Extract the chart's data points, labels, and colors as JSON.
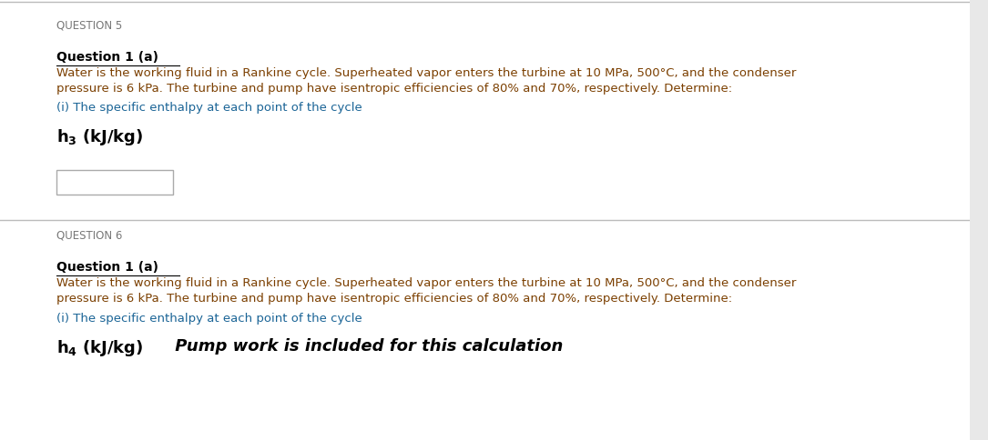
{
  "bg_color": "#e8e8e8",
  "panel_color": "#ffffff",
  "q5_label": "QUESTION 5",
  "q6_label": "QUESTION 6",
  "sub_heading": "Question 1 (a)",
  "body_text_line1": "Water is the working fluid in a Rankine cycle. Superheated vapor enters the turbine at 10 MPa, 500°C, and the condenser",
  "body_text_line2": "pressure is 6 kPa. The turbine and pump have isentropic efficiencies of 80% and 70%, respectively. Determine:",
  "sub_item": "(i) The specific enthalpy at each point of the cycle",
  "h3_math": "$\\mathbf{h_3}$ (kJ/kg)",
  "h4_math": "$\\mathbf{h_4}$ (kJ/kg)",
  "h4_italic_extra": " Pump work is included for this calculation",
  "color_black": "#000000",
  "color_brown": "#7B3F00",
  "color_blue_link": "#1a6496",
  "color_gray_label": "#777777",
  "divider_color": "#bbbbbb"
}
